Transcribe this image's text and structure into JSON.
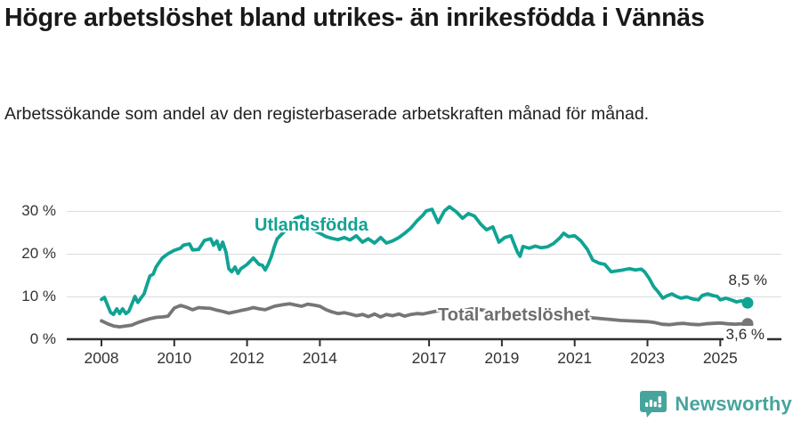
{
  "header": {
    "title": "Högre arbetslöshet bland utrikes- än inrikesfödda i Vännäs",
    "subtitle": "Arbetssökande som andel av den registerbaserade arbetskraften månad för månad."
  },
  "footer": {
    "brand": "Newsworthy"
  },
  "colors": {
    "utland": "#10a394",
    "total": "#767676",
    "grid": "#dcdcdc",
    "axis": "#2f2f2f",
    "brand_teal": "#47a49d"
  },
  "chart_data": {
    "type": "line",
    "title": "Högre arbetslöshet bland utrikes- än inrikesfödda i Vännäs",
    "subtitle": "Arbetssökande som andel av den registerbaserade arbetskraften månad för månad.",
    "unit": "%",
    "ylim": [
      0,
      33
    ],
    "xlim": [
      2007.05,
      2026.7
    ],
    "y_ticks": [
      0,
      10,
      20,
      30
    ],
    "y_tick_labels": [
      "0 %",
      "10 %",
      "20 %",
      "30 %"
    ],
    "x_ticks": [
      2008,
      2010,
      2012,
      2014,
      2017,
      2019,
      2021,
      2023,
      2025
    ],
    "grid": "horizontal-only",
    "legend_position": "inline-labels",
    "series": [
      {
        "name": "Utlandsfödda",
        "label": "Utlandsfödda",
        "color": "#10a394",
        "end_label": "8,5 %",
        "end_value": 8.5,
        "data": [
          [
            2008.0,
            9.3
          ],
          [
            2008.08,
            9.8
          ],
          [
            2008.17,
            7.9
          ],
          [
            2008.25,
            6.3
          ],
          [
            2008.33,
            5.8
          ],
          [
            2008.42,
            7.1
          ],
          [
            2008.5,
            6.0
          ],
          [
            2008.58,
            7.1
          ],
          [
            2008.67,
            6.0
          ],
          [
            2008.75,
            6.5
          ],
          [
            2008.83,
            8.1
          ],
          [
            2008.92,
            10.0
          ],
          [
            2009.0,
            8.6
          ],
          [
            2009.08,
            9.6
          ],
          [
            2009.17,
            10.6
          ],
          [
            2009.25,
            12.7
          ],
          [
            2009.33,
            14.8
          ],
          [
            2009.42,
            15.2
          ],
          [
            2009.5,
            16.9
          ],
          [
            2009.67,
            19.0
          ],
          [
            2009.83,
            20.0
          ],
          [
            2010.0,
            20.8
          ],
          [
            2010.17,
            21.3
          ],
          [
            2010.25,
            22.0
          ],
          [
            2010.42,
            22.3
          ],
          [
            2010.5,
            20.9
          ],
          [
            2010.67,
            21.0
          ],
          [
            2010.83,
            23.1
          ],
          [
            2011.0,
            23.5
          ],
          [
            2011.08,
            22.0
          ],
          [
            2011.17,
            23.0
          ],
          [
            2011.25,
            21.0
          ],
          [
            2011.33,
            22.7
          ],
          [
            2011.42,
            20.4
          ],
          [
            2011.5,
            16.5
          ],
          [
            2011.58,
            15.8
          ],
          [
            2011.67,
            16.9
          ],
          [
            2011.75,
            15.4
          ],
          [
            2011.83,
            16.5
          ],
          [
            2011.92,
            17.0
          ],
          [
            2012.0,
            17.5
          ],
          [
            2012.17,
            19.0
          ],
          [
            2012.33,
            17.5
          ],
          [
            2012.42,
            17.3
          ],
          [
            2012.5,
            16.2
          ],
          [
            2012.58,
            17.5
          ],
          [
            2012.67,
            19.4
          ],
          [
            2012.75,
            21.7
          ],
          [
            2012.83,
            23.5
          ],
          [
            2013.0,
            25.0
          ],
          [
            2013.17,
            26.5
          ],
          [
            2013.33,
            28.3
          ],
          [
            2013.5,
            28.8
          ],
          [
            2013.67,
            27.0
          ],
          [
            2013.83,
            25.5
          ],
          [
            2014.0,
            24.8
          ],
          [
            2014.17,
            24.0
          ],
          [
            2014.33,
            23.6
          ],
          [
            2014.5,
            23.3
          ],
          [
            2014.67,
            23.8
          ],
          [
            2014.83,
            23.2
          ],
          [
            2015.0,
            24.2
          ],
          [
            2015.17,
            22.7
          ],
          [
            2015.33,
            23.5
          ],
          [
            2015.5,
            22.5
          ],
          [
            2015.67,
            23.8
          ],
          [
            2015.83,
            22.5
          ],
          [
            2016.0,
            23.0
          ],
          [
            2016.17,
            23.8
          ],
          [
            2016.33,
            24.8
          ],
          [
            2016.5,
            26.0
          ],
          [
            2016.67,
            27.7
          ],
          [
            2016.83,
            29.0
          ],
          [
            2016.92,
            30.0
          ],
          [
            2017.08,
            30.4
          ],
          [
            2017.25,
            27.3
          ],
          [
            2017.42,
            30.0
          ],
          [
            2017.56,
            31.0
          ],
          [
            2017.75,
            29.8
          ],
          [
            2017.92,
            28.3
          ],
          [
            2018.08,
            29.4
          ],
          [
            2018.25,
            28.8
          ],
          [
            2018.42,
            26.9
          ],
          [
            2018.58,
            25.6
          ],
          [
            2018.75,
            26.3
          ],
          [
            2018.92,
            22.7
          ],
          [
            2019.08,
            23.8
          ],
          [
            2019.25,
            24.2
          ],
          [
            2019.42,
            20.5
          ],
          [
            2019.5,
            19.4
          ],
          [
            2019.58,
            21.7
          ],
          [
            2019.75,
            21.3
          ],
          [
            2019.92,
            21.8
          ],
          [
            2020.08,
            21.4
          ],
          [
            2020.25,
            21.6
          ],
          [
            2020.42,
            22.4
          ],
          [
            2020.58,
            23.6
          ],
          [
            2020.7,
            24.8
          ],
          [
            2020.83,
            24.0
          ],
          [
            2021.0,
            24.2
          ],
          [
            2021.17,
            23.0
          ],
          [
            2021.35,
            21.0
          ],
          [
            2021.5,
            18.5
          ],
          [
            2021.67,
            17.8
          ],
          [
            2021.83,
            17.5
          ],
          [
            2022.0,
            15.8
          ],
          [
            2022.17,
            16.0
          ],
          [
            2022.33,
            16.2
          ],
          [
            2022.5,
            16.5
          ],
          [
            2022.67,
            16.2
          ],
          [
            2022.83,
            16.4
          ],
          [
            2022.92,
            15.8
          ],
          [
            2023.05,
            14.2
          ],
          [
            2023.17,
            12.3
          ],
          [
            2023.3,
            11.0
          ],
          [
            2023.42,
            9.6
          ],
          [
            2023.55,
            10.2
          ],
          [
            2023.67,
            10.6
          ],
          [
            2023.8,
            10.0
          ],
          [
            2023.92,
            9.6
          ],
          [
            2024.08,
            9.9
          ],
          [
            2024.25,
            9.4
          ],
          [
            2024.4,
            9.2
          ],
          [
            2024.5,
            10.2
          ],
          [
            2024.65,
            10.6
          ],
          [
            2024.8,
            10.2
          ],
          [
            2024.92,
            10.0
          ],
          [
            2025.0,
            9.2
          ],
          [
            2025.15,
            9.6
          ],
          [
            2025.3,
            9.2
          ],
          [
            2025.45,
            8.7
          ],
          [
            2025.58,
            9.0
          ],
          [
            2025.75,
            8.5
          ]
        ]
      },
      {
        "name": "Total arbetslöshet",
        "label": "Total arbetslöshet",
        "color": "#767676",
        "end_label": "3,6 %",
        "end_value": 3.6,
        "data": [
          [
            2008.0,
            4.3
          ],
          [
            2008.17,
            3.6
          ],
          [
            2008.33,
            3.1
          ],
          [
            2008.5,
            2.9
          ],
          [
            2008.67,
            3.1
          ],
          [
            2008.83,
            3.3
          ],
          [
            2009.0,
            3.9
          ],
          [
            2009.17,
            4.4
          ],
          [
            2009.33,
            4.8
          ],
          [
            2009.5,
            5.1
          ],
          [
            2009.67,
            5.2
          ],
          [
            2009.83,
            5.4
          ],
          [
            2010.0,
            7.3
          ],
          [
            2010.17,
            7.9
          ],
          [
            2010.33,
            7.5
          ],
          [
            2010.5,
            6.9
          ],
          [
            2010.67,
            7.4
          ],
          [
            2010.83,
            7.3
          ],
          [
            2011.0,
            7.2
          ],
          [
            2011.17,
            6.8
          ],
          [
            2011.33,
            6.5
          ],
          [
            2011.5,
            6.1
          ],
          [
            2011.67,
            6.4
          ],
          [
            2011.83,
            6.7
          ],
          [
            2012.0,
            7.0
          ],
          [
            2012.17,
            7.4
          ],
          [
            2012.33,
            7.1
          ],
          [
            2012.5,
            6.9
          ],
          [
            2012.75,
            7.7
          ],
          [
            2013.0,
            8.1
          ],
          [
            2013.17,
            8.3
          ],
          [
            2013.33,
            8.0
          ],
          [
            2013.5,
            7.7
          ],
          [
            2013.67,
            8.2
          ],
          [
            2013.83,
            8.0
          ],
          [
            2014.0,
            7.7
          ],
          [
            2014.17,
            6.9
          ],
          [
            2014.33,
            6.4
          ],
          [
            2014.5,
            6.0
          ],
          [
            2014.67,
            6.2
          ],
          [
            2014.83,
            5.9
          ],
          [
            2015.0,
            5.5
          ],
          [
            2015.17,
            5.8
          ],
          [
            2015.33,
            5.3
          ],
          [
            2015.5,
            5.9
          ],
          [
            2015.67,
            5.2
          ],
          [
            2015.83,
            5.8
          ],
          [
            2016.0,
            5.5
          ],
          [
            2016.17,
            5.9
          ],
          [
            2016.33,
            5.4
          ],
          [
            2016.5,
            5.8
          ],
          [
            2016.67,
            6.0
          ],
          [
            2016.83,
            5.9
          ],
          [
            2017.0,
            6.2
          ],
          [
            2017.17,
            6.5
          ],
          [
            2017.33,
            6.8
          ],
          [
            2017.5,
            6.6
          ],
          [
            2017.67,
            6.4
          ],
          [
            2017.83,
            6.6
          ],
          [
            2018.0,
            6.8
          ],
          [
            2018.17,
            7.1
          ],
          [
            2018.33,
            7.0
          ],
          [
            2018.5,
            6.8
          ],
          [
            2018.67,
            6.5
          ],
          [
            2018.83,
            6.3
          ],
          [
            2019.0,
            6.1
          ],
          [
            2019.25,
            5.9
          ],
          [
            2019.5,
            5.6
          ],
          [
            2019.75,
            5.7
          ],
          [
            2020.0,
            5.9
          ],
          [
            2020.25,
            6.2
          ],
          [
            2020.5,
            6.1
          ],
          [
            2020.75,
            5.8
          ],
          [
            2021.0,
            5.6
          ],
          [
            2021.25,
            5.3
          ],
          [
            2021.5,
            5.0
          ],
          [
            2021.75,
            4.8
          ],
          [
            2022.0,
            4.6
          ],
          [
            2022.25,
            4.4
          ],
          [
            2022.5,
            4.3
          ],
          [
            2022.75,
            4.2
          ],
          [
            2023.0,
            4.1
          ],
          [
            2023.2,
            3.9
          ],
          [
            2023.4,
            3.5
          ],
          [
            2023.6,
            3.4
          ],
          [
            2023.8,
            3.6
          ],
          [
            2024.0,
            3.7
          ],
          [
            2024.2,
            3.5
          ],
          [
            2024.4,
            3.4
          ],
          [
            2024.6,
            3.6
          ],
          [
            2024.8,
            3.7
          ],
          [
            2025.0,
            3.8
          ],
          [
            2025.2,
            3.6
          ],
          [
            2025.4,
            3.5
          ],
          [
            2025.6,
            3.6
          ],
          [
            2025.75,
            3.6
          ]
        ]
      }
    ]
  }
}
